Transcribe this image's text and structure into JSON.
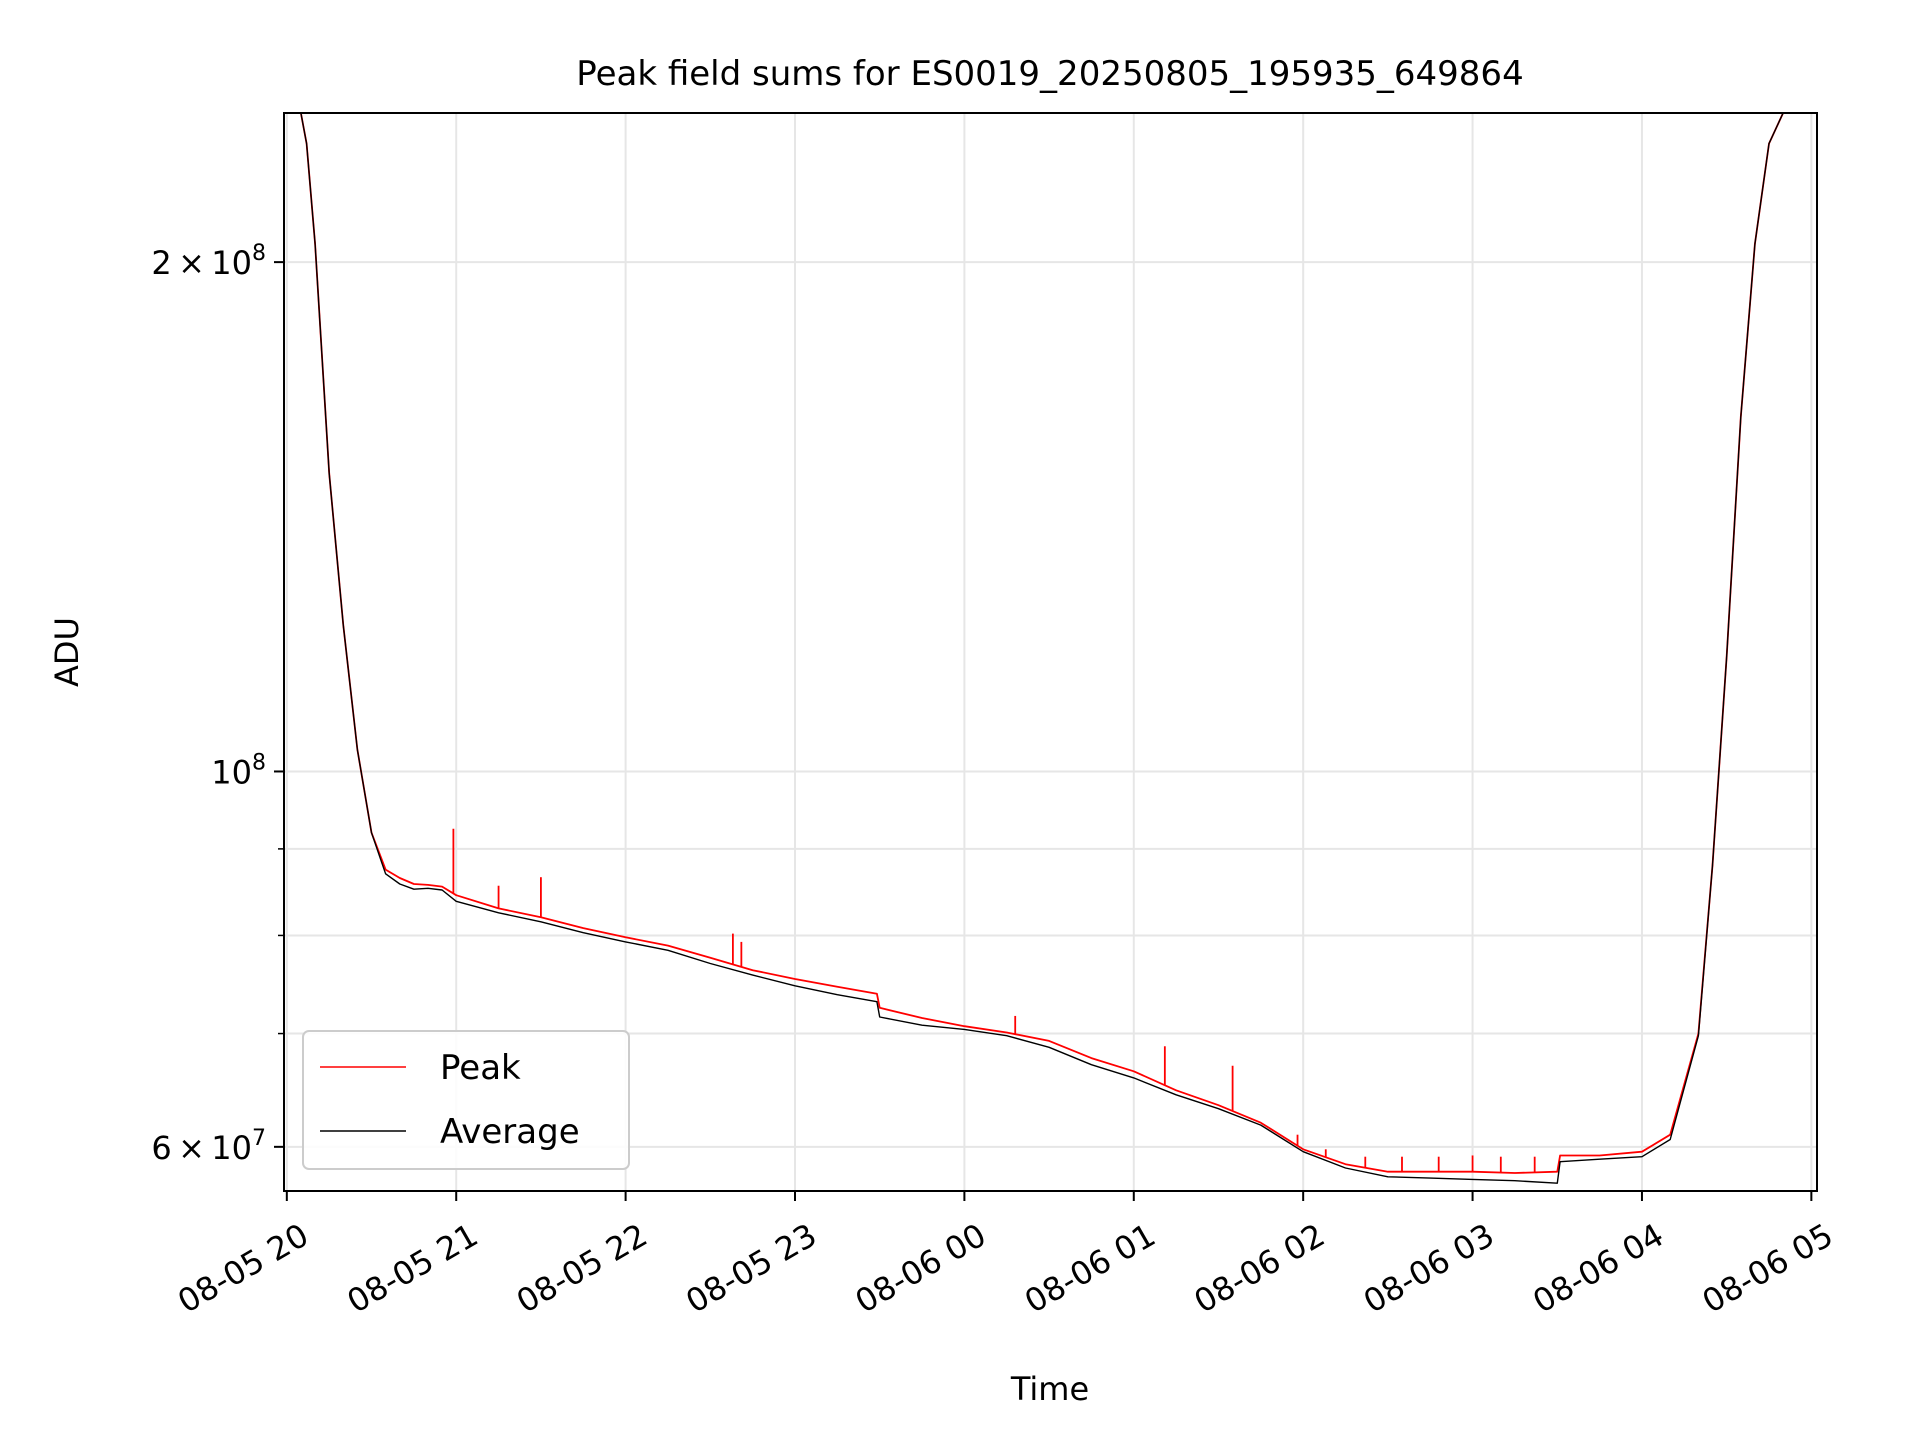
{
  "chart_data": {
    "type": "line",
    "title": "Peak field sums for ES0019_20250805_195935_649864",
    "xlabel": "Time",
    "ylabel": "ADU",
    "x_axis": {
      "type": "datetime",
      "range": [
        "2025-08-05 19:59",
        "2025-08-06 05:02"
      ],
      "ticks": [
        "2025-08-05 20:00",
        "2025-08-05 21:00",
        "2025-08-05 22:00",
        "2025-08-05 23:00",
        "2025-08-06 00:00",
        "2025-08-06 01:00",
        "2025-08-06 02:00",
        "2025-08-06 03:00",
        "2025-08-06 04:00",
        "2025-08-06 05:00"
      ],
      "tick_labels": [
        "08-05 20",
        "08-05 21",
        "08-05 22",
        "08-05 23",
        "08-06 00",
        "08-06 01",
        "08-06 02",
        "08-06 03",
        "08-06 04",
        "08-06 05"
      ]
    },
    "y_axis": {
      "scale": "log",
      "range": [
        56500000,
        245000000
      ],
      "major_ticks": [
        {
          "value": 200000000,
          "mantissa": "2",
          "exp": "8"
        },
        {
          "value": 100000000,
          "mantissa": "",
          "exp": "8"
        },
        {
          "value": 60000000,
          "mantissa": "6",
          "exp": "7"
        }
      ],
      "minor_ticks": [
        70000000,
        80000000,
        90000000
      ]
    },
    "grid": true,
    "legend_position": "lower-left",
    "series": [
      {
        "name": "Peak",
        "color": "#ff0000",
        "x": [
          "2025-08-05 20:05",
          "2025-08-05 20:07",
          "2025-08-05 20:10",
          "2025-08-05 20:15",
          "2025-08-05 20:20",
          "2025-08-05 20:25",
          "2025-08-05 20:30",
          "2025-08-05 20:35",
          "2025-08-05 20:40",
          "2025-08-05 20:45",
          "2025-08-05 20:50",
          "2025-08-05 20:55",
          "2025-08-05 21:00",
          "2025-08-05 21:15",
          "2025-08-05 21:30",
          "2025-08-05 21:45",
          "2025-08-05 22:00",
          "2025-08-05 22:15",
          "2025-08-05 22:30",
          "2025-08-05 22:45",
          "2025-08-05 23:00",
          "2025-08-05 23:15",
          "2025-08-05 23:29",
          "2025-08-05 23:30",
          "2025-08-05 23:45",
          "2025-08-06 00:00",
          "2025-08-06 00:15",
          "2025-08-06 00:30",
          "2025-08-06 00:45",
          "2025-08-06 01:00",
          "2025-08-06 01:15",
          "2025-08-06 01:30",
          "2025-08-06 01:45",
          "2025-08-06 02:00",
          "2025-08-06 02:15",
          "2025-08-06 02:30",
          "2025-08-06 02:45",
          "2025-08-06 03:00",
          "2025-08-06 03:15",
          "2025-08-06 03:30",
          "2025-08-06 03:31",
          "2025-08-06 03:45",
          "2025-08-06 04:00",
          "2025-08-06 04:10",
          "2025-08-06 04:20",
          "2025-08-06 04:25",
          "2025-08-06 04:30",
          "2025-08-06 04:35",
          "2025-08-06 04:40",
          "2025-08-06 04:45",
          "2025-08-06 04:50",
          "2025-08-06 04:53"
        ],
        "values": [
          245000000,
          235000000,
          205000000,
          150000000,
          122000000,
          103000000,
          92000000,
          87500000,
          86500000,
          85800000,
          85700000,
          85500000,
          84500000,
          83000000,
          82000000,
          80800000,
          79800000,
          78900000,
          77600000,
          76300000,
          75400000,
          74600000,
          73900000,
          72500000,
          71500000,
          70700000,
          70100000,
          69300000,
          67700000,
          66500000,
          64800000,
          63500000,
          62000000,
          59800000,
          58600000,
          58000000,
          58000000,
          58000000,
          57900000,
          58000000,
          59300000,
          59300000,
          59600000,
          61000000,
          70000000,
          88000000,
          117000000,
          162000000,
          205000000,
          235000000,
          245000000,
          245000000
        ],
        "spikes": [
          {
            "x": "2025-08-05 20:59",
            "value": 92500000
          },
          {
            "x": "2025-08-05 21:15",
            "value": 85600000
          },
          {
            "x": "2025-08-05 21:30",
            "value": 86600000
          },
          {
            "x": "2025-08-05 22:38",
            "value": 80200000
          },
          {
            "x": "2025-08-05 22:41",
            "value": 79300000
          },
          {
            "x": "2025-08-06 00:18",
            "value": 71700000
          },
          {
            "x": "2025-08-06 01:11",
            "value": 68800000
          },
          {
            "x": "2025-08-06 01:35",
            "value": 67000000
          },
          {
            "x": "2025-08-06 01:58",
            "value": 61000000
          },
          {
            "x": "2025-08-06 02:08",
            "value": 59800000
          },
          {
            "x": "2025-08-06 02:22",
            "value": 59200000
          },
          {
            "x": "2025-08-06 02:35",
            "value": 59200000
          },
          {
            "x": "2025-08-06 02:48",
            "value": 59200000
          },
          {
            "x": "2025-08-06 03:00",
            "value": 59300000
          },
          {
            "x": "2025-08-06 03:10",
            "value": 59200000
          },
          {
            "x": "2025-08-06 03:22",
            "value": 59200000
          }
        ]
      },
      {
        "name": "Average",
        "color": "#000000",
        "x": [
          "2025-08-05 20:05",
          "2025-08-05 20:07",
          "2025-08-05 20:10",
          "2025-08-05 20:15",
          "2025-08-05 20:20",
          "2025-08-05 20:25",
          "2025-08-05 20:30",
          "2025-08-05 20:35",
          "2025-08-05 20:40",
          "2025-08-05 20:45",
          "2025-08-05 20:50",
          "2025-08-05 20:55",
          "2025-08-05 21:00",
          "2025-08-05 21:15",
          "2025-08-05 21:30",
          "2025-08-05 21:45",
          "2025-08-05 22:00",
          "2025-08-05 22:15",
          "2025-08-05 22:30",
          "2025-08-05 22:45",
          "2025-08-05 23:00",
          "2025-08-05 23:15",
          "2025-08-05 23:29",
          "2025-08-05 23:30",
          "2025-08-05 23:45",
          "2025-08-06 00:00",
          "2025-08-06 00:15",
          "2025-08-06 00:30",
          "2025-08-06 00:45",
          "2025-08-06 01:00",
          "2025-08-06 01:15",
          "2025-08-06 01:30",
          "2025-08-06 01:45",
          "2025-08-06 02:00",
          "2025-08-06 02:15",
          "2025-08-06 02:30",
          "2025-08-06 02:45",
          "2025-08-06 03:00",
          "2025-08-06 03:15",
          "2025-08-06 03:30",
          "2025-08-06 03:31",
          "2025-08-06 03:45",
          "2025-08-06 04:00",
          "2025-08-06 04:10",
          "2025-08-06 04:20",
          "2025-08-06 04:25",
          "2025-08-06 04:30",
          "2025-08-06 04:35",
          "2025-08-06 04:40",
          "2025-08-06 04:45",
          "2025-08-06 04:50",
          "2025-08-06 04:53"
        ],
        "values": [
          245000000,
          235000000,
          205000000,
          150000000,
          122000000,
          103000000,
          92000000,
          87000000,
          85800000,
          85200000,
          85300000,
          85100000,
          83800000,
          82500000,
          81500000,
          80300000,
          79300000,
          78400000,
          77000000,
          75800000,
          74700000,
          73800000,
          73100000,
          71600000,
          70800000,
          70400000,
          69800000,
          68700000,
          67100000,
          65900000,
          64400000,
          63200000,
          61800000,
          59600000,
          58300000,
          57600000,
          57500000,
          57400000,
          57300000,
          57100000,
          58800000,
          59000000,
          59200000,
          60600000,
          69800000,
          88000000,
          117000000,
          162000000,
          205000000,
          235000000,
          245000000,
          245000000
        ]
      }
    ]
  }
}
